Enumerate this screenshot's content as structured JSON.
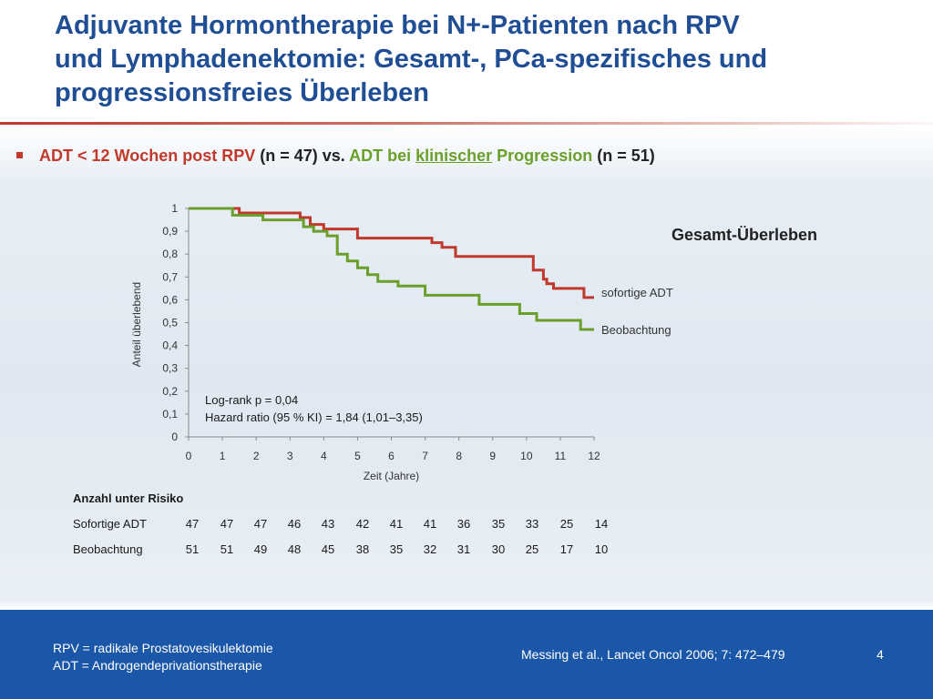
{
  "slide": {
    "title_lines": [
      "Adjuvante Hormontherapie bei N+-Patienten nach RPV",
      "und Lymphadenektomie: Gesamt-, PCa-spezifisches und",
      "progressionsfreies Überleben"
    ],
    "bullet": {
      "part1": "ADT < 12 Wochen post RPV",
      "part2": " (n = 47) vs. ",
      "part3": "ADT bei ",
      "part4": "klinischer",
      "part5": " Progression",
      "part6": " (n = 51)"
    },
    "colors": {
      "title": "#1f4e94",
      "red": "#c0392b",
      "green": "#6aa02a",
      "footer": "#1b57a8"
    }
  },
  "chart_data": {
    "type": "line",
    "step": true,
    "title": "Gesamt-Überleben",
    "xlabel": "Zeit (Jahre)",
    "ylabel": "Anteil überlebend",
    "xlim": [
      0,
      12
    ],
    "ylim": [
      0,
      1
    ],
    "x_ticks": [
      "0",
      "1",
      "2",
      "3",
      "4",
      "5",
      "6",
      "7",
      "8",
      "9",
      "10",
      "11",
      "12"
    ],
    "y_ticks": [
      "0",
      "0,1",
      "0,2",
      "0,3",
      "0,4",
      "0,5",
      "0,6",
      "0,7",
      "0,8",
      "0,9",
      "1"
    ],
    "series": [
      {
        "name": "sofortige ADT",
        "color": "#c0392b",
        "points": [
          [
            0,
            1.0
          ],
          [
            1.5,
            1.0
          ],
          [
            1.5,
            0.98
          ],
          [
            3.3,
            0.98
          ],
          [
            3.3,
            0.96
          ],
          [
            3.6,
            0.96
          ],
          [
            3.6,
            0.93
          ],
          [
            4.0,
            0.93
          ],
          [
            4.0,
            0.91
          ],
          [
            5.0,
            0.91
          ],
          [
            5.0,
            0.87
          ],
          [
            7.2,
            0.87
          ],
          [
            7.2,
            0.85
          ],
          [
            7.5,
            0.85
          ],
          [
            7.5,
            0.83
          ],
          [
            7.9,
            0.83
          ],
          [
            7.9,
            0.79
          ],
          [
            10.2,
            0.79
          ],
          [
            10.2,
            0.73
          ],
          [
            10.5,
            0.73
          ],
          [
            10.5,
            0.69
          ],
          [
            10.6,
            0.69
          ],
          [
            10.6,
            0.67
          ],
          [
            10.8,
            0.67
          ],
          [
            10.8,
            0.65
          ],
          [
            11.7,
            0.65
          ],
          [
            11.7,
            0.61
          ],
          [
            12.0,
            0.61
          ]
        ]
      },
      {
        "name": "Beobachtung",
        "color": "#6aa02a",
        "points": [
          [
            0,
            1.0
          ],
          [
            1.3,
            1.0
          ],
          [
            1.3,
            0.97
          ],
          [
            2.2,
            0.97
          ],
          [
            2.2,
            0.95
          ],
          [
            3.4,
            0.95
          ],
          [
            3.4,
            0.92
          ],
          [
            3.7,
            0.92
          ],
          [
            3.7,
            0.9
          ],
          [
            4.1,
            0.9
          ],
          [
            4.1,
            0.88
          ],
          [
            4.4,
            0.88
          ],
          [
            4.4,
            0.8
          ],
          [
            4.7,
            0.8
          ],
          [
            4.7,
            0.77
          ],
          [
            5.0,
            0.77
          ],
          [
            5.0,
            0.74
          ],
          [
            5.3,
            0.74
          ],
          [
            5.3,
            0.71
          ],
          [
            5.6,
            0.71
          ],
          [
            5.6,
            0.68
          ],
          [
            6.2,
            0.68
          ],
          [
            6.2,
            0.66
          ],
          [
            7.0,
            0.66
          ],
          [
            7.0,
            0.62
          ],
          [
            8.6,
            0.62
          ],
          [
            8.6,
            0.58
          ],
          [
            9.8,
            0.58
          ],
          [
            9.8,
            0.54
          ],
          [
            10.3,
            0.54
          ],
          [
            10.3,
            0.51
          ],
          [
            11.6,
            0.51
          ],
          [
            11.6,
            0.47
          ],
          [
            12.0,
            0.47
          ]
        ]
      }
    ],
    "annotations": [
      "Log-rank p = 0,04",
      "Hazard ratio (95 % KI) = 1,84 (1,01–3,35)"
    ],
    "risk_table": {
      "title": "Anzahl unter Risiko",
      "rows": [
        {
          "label": "Sofortige ADT",
          "values": [
            "47",
            "47",
            "47",
            "46",
            "43",
            "42",
            "41",
            "41",
            "36",
            "35",
            "33",
            "25",
            "14"
          ]
        },
        {
          "label": "Beobachtung",
          "values": [
            "51",
            "51",
            "49",
            "48",
            "45",
            "38",
            "35",
            "32",
            "31",
            "30",
            "25",
            "17",
            "10"
          ]
        }
      ]
    }
  },
  "footer": {
    "abbr_line1": "RPV = radikale Prostatovesikulektomie",
    "abbr_line2": "ADT = Androgendeprivationstherapie",
    "reference": "Messing et al., Lancet Oncol 2006; 7: 472–479",
    "page_number": "4"
  }
}
